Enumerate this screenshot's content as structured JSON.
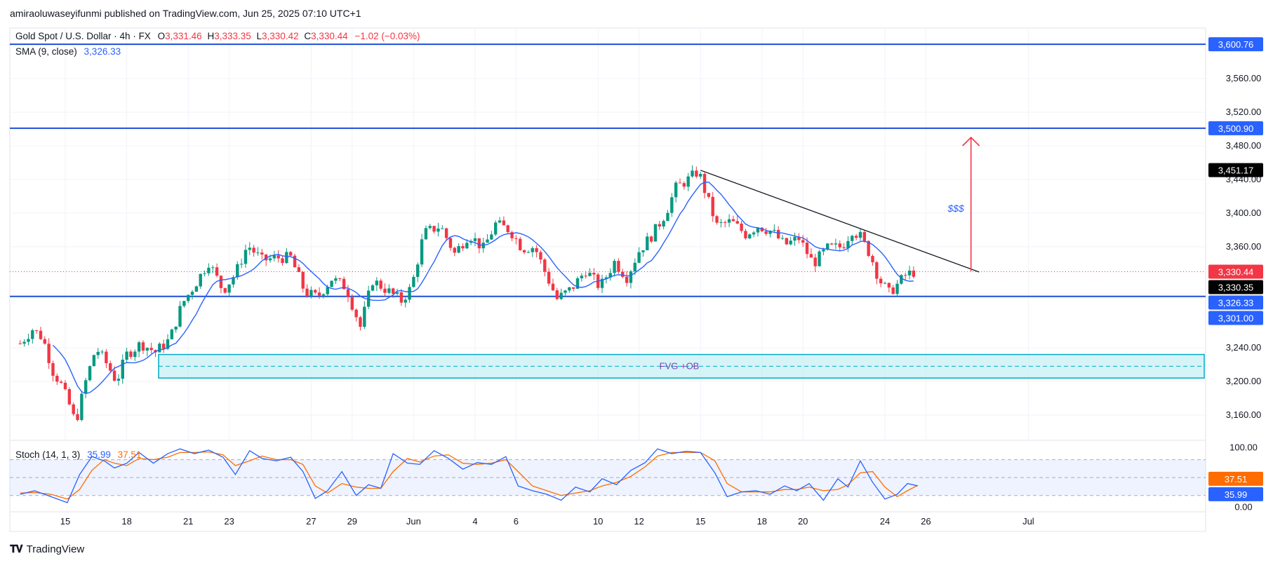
{
  "header": {
    "published_by": "amiraoluwaseyifunmi published on TradingView.com, Jun 25, 2025 07:10 UTC+1"
  },
  "legend": {
    "symbol": "Gold Spot / U.S. Dollar · 4h · FX",
    "o_label": "O",
    "open": "3,331.46",
    "h_label": "H",
    "high": "3,333.35",
    "l_label": "L",
    "low": "3,330.42",
    "c_label": "C",
    "close": "3,330.44",
    "change": "−1.02 (−0.03%)",
    "sma_label": "SMA (9, close)",
    "sma_value": "3,326.33",
    "stoch_label": "Stoch (14, 1, 3)",
    "stoch_k": "35.99",
    "stoch_d": "37.51"
  },
  "annotations": {
    "fvg_label": "FVG +OB",
    "liquidity_label": "$$$"
  },
  "footer": {
    "brand": "TradingView"
  },
  "colors": {
    "up": "#089981",
    "down": "#f23645",
    "sma": "#2962ff",
    "level_line": "#1e4fd8",
    "stoch_k": "#2962ff",
    "stoch_d": "#ff6d00",
    "zone_fill": "#b2ebf2",
    "zone_border": "#00acc1",
    "arrow": "#f23645",
    "trendline": "#131722"
  },
  "chart_data": {
    "type": "candlestick",
    "price_axis": {
      "ylim": [
        3130,
        3620
      ],
      "ticks": [
        "3,160.00",
        "3,200.00",
        "3,240.00",
        "3,360.00",
        "3,400.00",
        "3,440.00",
        "3,480.00",
        "3,520.00",
        "3,560.00"
      ],
      "tick_values": [
        3160,
        3200,
        3240,
        3360,
        3400,
        3440,
        3480,
        3520,
        3560
      ]
    },
    "time_axis": {
      "labels": [
        "15",
        "18",
        "21",
        "23",
        "27",
        "29",
        "Jun",
        "4",
        "6",
        "10",
        "12",
        "15",
        "18",
        "20",
        "24",
        "26",
        "Jul"
      ],
      "positions": [
        0,
        3,
        6,
        8,
        12,
        14,
        17,
        20,
        22,
        26,
        28,
        31,
        34,
        36,
        40,
        42,
        47
      ]
    },
    "horizontal_levels": [
      {
        "value": 3600.76,
        "label": "3,600.76"
      },
      {
        "value": 3500.9,
        "label": "3,500.90"
      },
      {
        "value": 3301.0,
        "label": "3,301.00"
      }
    ],
    "price_tags": [
      {
        "value": 3451.17,
        "label": "3,451.17",
        "color": "#000000"
      },
      {
        "value": 3330.44,
        "label": "3,330.44",
        "color": "#f23645"
      },
      {
        "value": 3330.35,
        "label": "3,330.35",
        "color": "#000000"
      },
      {
        "value": 3326.33,
        "label": "3,326.33",
        "color": "#2962ff"
      },
      {
        "value": 3301.0,
        "label": "3,301.00",
        "color": "#2962ff"
      }
    ],
    "current_price": 3330.44,
    "zone": {
      "low": 3204,
      "high": 3232,
      "mid": 3218,
      "label": "FVG +OB"
    },
    "trendline": {
      "start": {
        "t": 31,
        "price": 3451
      },
      "end": {
        "t": 44.6,
        "price": 3330
      }
    },
    "projection_arrow": {
      "t": 44.2,
      "from": 3331,
      "to": 3490
    },
    "price_path": [
      {
        "t": -2.2,
        "p": 3245
      },
      {
        "t": -1.6,
        "p": 3262
      },
      {
        "t": -1.1,
        "p": 3252
      },
      {
        "t": -0.6,
        "p": 3212
      },
      {
        "t": -0.2,
        "p": 3196
      },
      {
        "t": 0.2,
        "p": 3172
      },
      {
        "t": 0.5,
        "p": 3150
      },
      {
        "t": 1.0,
        "p": 3200
      },
      {
        "t": 1.5,
        "p": 3240
      },
      {
        "t": 2.1,
        "p": 3218
      },
      {
        "t": 2.5,
        "p": 3200
      },
      {
        "t": 3.0,
        "p": 3232
      },
      {
        "t": 3.7,
        "p": 3245
      },
      {
        "t": 4.4,
        "p": 3235
      },
      {
        "t": 5.1,
        "p": 3250
      },
      {
        "t": 5.7,
        "p": 3292
      },
      {
        "t": 6.3,
        "p": 3314
      },
      {
        "t": 7.0,
        "p": 3342
      },
      {
        "t": 7.7,
        "p": 3308
      },
      {
        "t": 8.3,
        "p": 3328
      },
      {
        "t": 8.9,
        "p": 3362
      },
      {
        "t": 9.6,
        "p": 3344
      },
      {
        "t": 10.4,
        "p": 3347
      },
      {
        "t": 11.0,
        "p": 3347
      },
      {
        "t": 11.7,
        "p": 3306
      },
      {
        "t": 12.3,
        "p": 3300
      },
      {
        "t": 13.0,
        "p": 3322
      },
      {
        "t": 13.7,
        "p": 3312
      },
      {
        "t": 14.4,
        "p": 3265
      },
      {
        "t": 15.0,
        "p": 3320
      },
      {
        "t": 15.6,
        "p": 3310
      },
      {
        "t": 16.4,
        "p": 3296
      },
      {
        "t": 16.9,
        "p": 3312
      },
      {
        "t": 17.5,
        "p": 3376
      },
      {
        "t": 18.3,
        "p": 3385
      },
      {
        "t": 19.0,
        "p": 3352
      },
      {
        "t": 19.7,
        "p": 3375
      },
      {
        "t": 20.4,
        "p": 3358
      },
      {
        "t": 21.0,
        "p": 3387
      },
      {
        "t": 21.7,
        "p": 3380
      },
      {
        "t": 22.3,
        "p": 3358
      },
      {
        "t": 22.9,
        "p": 3360
      },
      {
        "t": 23.5,
        "p": 3325
      },
      {
        "t": 24.0,
        "p": 3298
      },
      {
        "t": 24.7,
        "p": 3310
      },
      {
        "t": 25.4,
        "p": 3332
      },
      {
        "t": 26.1,
        "p": 3312
      },
      {
        "t": 26.8,
        "p": 3342
      },
      {
        "t": 27.4,
        "p": 3324
      },
      {
        "t": 28.0,
        "p": 3355
      },
      {
        "t": 28.7,
        "p": 3376
      },
      {
        "t": 29.3,
        "p": 3400
      },
      {
        "t": 29.8,
        "p": 3430
      },
      {
        "t": 30.4,
        "p": 3440
      },
      {
        "t": 30.9,
        "p": 3450
      },
      {
        "t": 31.3,
        "p": 3420
      },
      {
        "t": 31.8,
        "p": 3385
      },
      {
        "t": 32.5,
        "p": 3390
      },
      {
        "t": 33.2,
        "p": 3375
      },
      {
        "t": 33.8,
        "p": 3385
      },
      {
        "t": 34.5,
        "p": 3378
      },
      {
        "t": 35.1,
        "p": 3362
      },
      {
        "t": 35.8,
        "p": 3370
      },
      {
        "t": 36.5,
        "p": 3340
      },
      {
        "t": 37.2,
        "p": 3358
      },
      {
        "t": 37.9,
        "p": 3360
      },
      {
        "t": 38.4,
        "p": 3380
      },
      {
        "t": 38.8,
        "p": 3372
      },
      {
        "t": 39.3,
        "p": 3350
      },
      {
        "t": 39.7,
        "p": 3322
      },
      {
        "t": 40.2,
        "p": 3305
      },
      {
        "t": 40.6,
        "p": 3315
      },
      {
        "t": 41.0,
        "p": 3326
      },
      {
        "t": 41.4,
        "p": 3330
      }
    ],
    "stoch_axis": {
      "ylim": [
        -5,
        110
      ],
      "ticks": [
        "100.00",
        "0.00"
      ],
      "tick_values": [
        100,
        0
      ],
      "band": [
        20,
        80
      ],
      "k_value": "35.99",
      "d_value": "37.51"
    },
    "stoch_k": [
      {
        "t": -2.2,
        "p": 22
      },
      {
        "t": -1.5,
        "p": 28
      },
      {
        "t": -0.7,
        "p": 18
      },
      {
        "t": 0.1,
        "p": 8
      },
      {
        "t": 0.7,
        "p": 55
      },
      {
        "t": 1.3,
        "p": 85
      },
      {
        "t": 1.9,
        "p": 78
      },
      {
        "t": 2.4,
        "p": 66
      },
      {
        "t": 3.0,
        "p": 74
      },
      {
        "t": 3.6,
        "p": 92
      },
      {
        "t": 4.3,
        "p": 74
      },
      {
        "t": 5.0,
        "p": 90
      },
      {
        "t": 5.6,
        "p": 98
      },
      {
        "t": 6.3,
        "p": 90
      },
      {
        "t": 7.0,
        "p": 96
      },
      {
        "t": 7.7,
        "p": 84
      },
      {
        "t": 8.3,
        "p": 55
      },
      {
        "t": 9.0,
        "p": 95
      },
      {
        "t": 9.6,
        "p": 82
      },
      {
        "t": 10.3,
        "p": 78
      },
      {
        "t": 11.0,
        "p": 84
      },
      {
        "t": 11.6,
        "p": 60
      },
      {
        "t": 12.2,
        "p": 15
      },
      {
        "t": 12.8,
        "p": 28
      },
      {
        "t": 13.5,
        "p": 60
      },
      {
        "t": 14.2,
        "p": 20
      },
      {
        "t": 14.8,
        "p": 38
      },
      {
        "t": 15.4,
        "p": 32
      },
      {
        "t": 16.0,
        "p": 90
      },
      {
        "t": 16.7,
        "p": 74
      },
      {
        "t": 17.3,
        "p": 72
      },
      {
        "t": 18.0,
        "p": 95
      },
      {
        "t": 18.7,
        "p": 82
      },
      {
        "t": 19.4,
        "p": 64
      },
      {
        "t": 20.1,
        "p": 75
      },
      {
        "t": 20.8,
        "p": 72
      },
      {
        "t": 21.5,
        "p": 85
      },
      {
        "t": 22.1,
        "p": 36
      },
      {
        "t": 22.8,
        "p": 28
      },
      {
        "t": 23.5,
        "p": 22
      },
      {
        "t": 24.2,
        "p": 12
      },
      {
        "t": 24.9,
        "p": 34
      },
      {
        "t": 25.6,
        "p": 26
      },
      {
        "t": 26.2,
        "p": 48
      },
      {
        "t": 26.9,
        "p": 38
      },
      {
        "t": 27.6,
        "p": 62
      },
      {
        "t": 28.3,
        "p": 75
      },
      {
        "t": 28.9,
        "p": 98
      },
      {
        "t": 29.6,
        "p": 90
      },
      {
        "t": 30.3,
        "p": 94
      },
      {
        "t": 31.0,
        "p": 92
      },
      {
        "t": 31.7,
        "p": 58
      },
      {
        "t": 32.3,
        "p": 18
      },
      {
        "t": 33.0,
        "p": 26
      },
      {
        "t": 33.7,
        "p": 28
      },
      {
        "t": 34.4,
        "p": 22
      },
      {
        "t": 35.1,
        "p": 36
      },
      {
        "t": 35.7,
        "p": 28
      },
      {
        "t": 36.3,
        "p": 40
      },
      {
        "t": 37.0,
        "p": 12
      },
      {
        "t": 37.7,
        "p": 48
      },
      {
        "t": 38.2,
        "p": 34
      },
      {
        "t": 38.8,
        "p": 78
      },
      {
        "t": 39.4,
        "p": 42
      },
      {
        "t": 40.0,
        "p": 14
      },
      {
        "t": 40.6,
        "p": 22
      },
      {
        "t": 41.1,
        "p": 40
      },
      {
        "t": 41.6,
        "p": 36
      }
    ],
    "stoch_d": [
      {
        "t": -2.2,
        "p": 24
      },
      {
        "t": -1.5,
        "p": 25
      },
      {
        "t": -0.7,
        "p": 22
      },
      {
        "t": 0.1,
        "p": 14
      },
      {
        "t": 0.7,
        "p": 30
      },
      {
        "t": 1.3,
        "p": 62
      },
      {
        "t": 1.9,
        "p": 80
      },
      {
        "t": 2.4,
        "p": 74
      },
      {
        "t": 3.0,
        "p": 70
      },
      {
        "t": 3.6,
        "p": 82
      },
      {
        "t": 4.3,
        "p": 80
      },
      {
        "t": 5.0,
        "p": 84
      },
      {
        "t": 5.6,
        "p": 92
      },
      {
        "t": 6.3,
        "p": 92
      },
      {
        "t": 7.0,
        "p": 93
      },
      {
        "t": 7.7,
        "p": 88
      },
      {
        "t": 8.3,
        "p": 70
      },
      {
        "t": 9.0,
        "p": 78
      },
      {
        "t": 9.6,
        "p": 86
      },
      {
        "t": 10.3,
        "p": 80
      },
      {
        "t": 11.0,
        "p": 80
      },
      {
        "t": 11.6,
        "p": 72
      },
      {
        "t": 12.2,
        "p": 36
      },
      {
        "t": 12.8,
        "p": 24
      },
      {
        "t": 13.5,
        "p": 40
      },
      {
        "t": 14.2,
        "p": 34
      },
      {
        "t": 14.8,
        "p": 32
      },
      {
        "t": 15.4,
        "p": 32
      },
      {
        "t": 16.0,
        "p": 60
      },
      {
        "t": 16.7,
        "p": 82
      },
      {
        "t": 17.3,
        "p": 76
      },
      {
        "t": 18.0,
        "p": 86
      },
      {
        "t": 18.7,
        "p": 88
      },
      {
        "t": 19.4,
        "p": 74
      },
      {
        "t": 20.1,
        "p": 72
      },
      {
        "t": 20.8,
        "p": 74
      },
      {
        "t": 21.5,
        "p": 80
      },
      {
        "t": 22.1,
        "p": 60
      },
      {
        "t": 22.8,
        "p": 36
      },
      {
        "t": 23.5,
        "p": 28
      },
      {
        "t": 24.2,
        "p": 20
      },
      {
        "t": 24.9,
        "p": 24
      },
      {
        "t": 25.6,
        "p": 28
      },
      {
        "t": 26.2,
        "p": 36
      },
      {
        "t": 26.9,
        "p": 42
      },
      {
        "t": 27.6,
        "p": 52
      },
      {
        "t": 28.3,
        "p": 68
      },
      {
        "t": 28.9,
        "p": 86
      },
      {
        "t": 29.6,
        "p": 92
      },
      {
        "t": 30.3,
        "p": 92
      },
      {
        "t": 31.0,
        "p": 92
      },
      {
        "t": 31.7,
        "p": 78
      },
      {
        "t": 32.3,
        "p": 40
      },
      {
        "t": 33.0,
        "p": 26
      },
      {
        "t": 33.7,
        "p": 26
      },
      {
        "t": 34.4,
        "p": 26
      },
      {
        "t": 35.1,
        "p": 30
      },
      {
        "t": 35.7,
        "p": 30
      },
      {
        "t": 36.3,
        "p": 34
      },
      {
        "t": 37.0,
        "p": 28
      },
      {
        "t": 37.7,
        "p": 30
      },
      {
        "t": 38.2,
        "p": 38
      },
      {
        "t": 38.8,
        "p": 58
      },
      {
        "t": 39.4,
        "p": 60
      },
      {
        "t": 40.0,
        "p": 34
      },
      {
        "t": 40.6,
        "p": 18
      },
      {
        "t": 41.1,
        "p": 28
      },
      {
        "t": 41.6,
        "p": 37
      }
    ]
  }
}
